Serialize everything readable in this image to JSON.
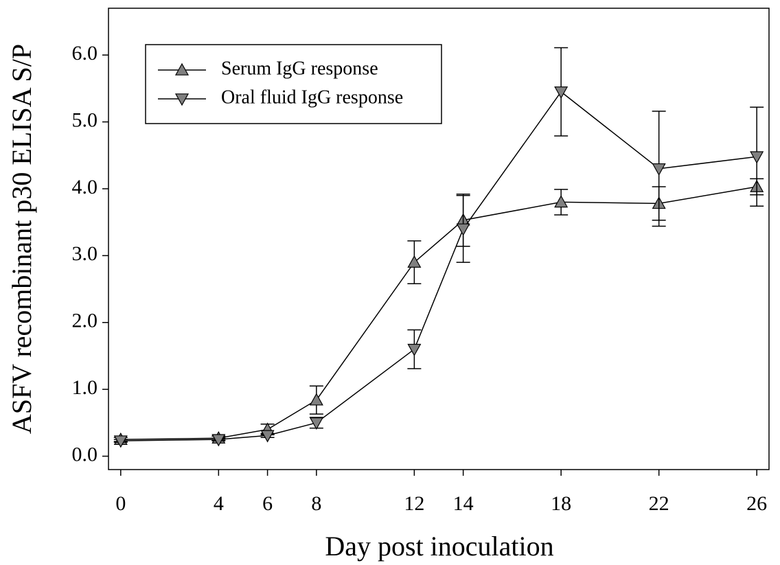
{
  "chart_data": {
    "type": "line",
    "x_label": "Day post inoculation",
    "y_label": "ASFV recombinant p30 ELISA S/P",
    "x": [
      0,
      4,
      6,
      8,
      12,
      14,
      18,
      22,
      26
    ],
    "series": [
      {
        "name": "Serum IgG response",
        "color": "#808080",
        "marker": "triangle-up",
        "values": [
          0.25,
          0.27,
          0.4,
          0.84,
          2.9,
          3.53,
          3.8,
          3.78,
          4.03
        ],
        "errors": [
          0.03,
          0.03,
          0.08,
          0.21,
          0.32,
          0.39,
          0.19,
          0.25,
          0.12
        ]
      },
      {
        "name": "Oral fluid IgG response",
        "color": "#808080",
        "marker": "triangle-down",
        "values": [
          0.23,
          0.25,
          0.31,
          0.5,
          1.6,
          3.4,
          5.45,
          4.3,
          4.48
        ],
        "errors": [
          0.02,
          0.02,
          0.03,
          0.08,
          0.29,
          0.5,
          0.66,
          0.86,
          0.74
        ]
      }
    ],
    "xlim": [
      -0.5,
      26.5
    ],
    "xticks": [
      0,
      4,
      6,
      8,
      12,
      14,
      18,
      22,
      26
    ],
    "ylim": [
      -0.2,
      6.7
    ],
    "yticks": [
      {
        "value": 0,
        "label": "0.0"
      },
      {
        "value": 1,
        "label": "1.0"
      },
      {
        "value": 2,
        "label": "2.0"
      },
      {
        "value": 3,
        "label": "3.0"
      },
      {
        "value": 4,
        "label": "4.0"
      },
      {
        "value": 5,
        "label": "5.0"
      },
      {
        "value": 6,
        "label": "6.0"
      }
    ],
    "legend": "upper-left",
    "grid": false
  }
}
